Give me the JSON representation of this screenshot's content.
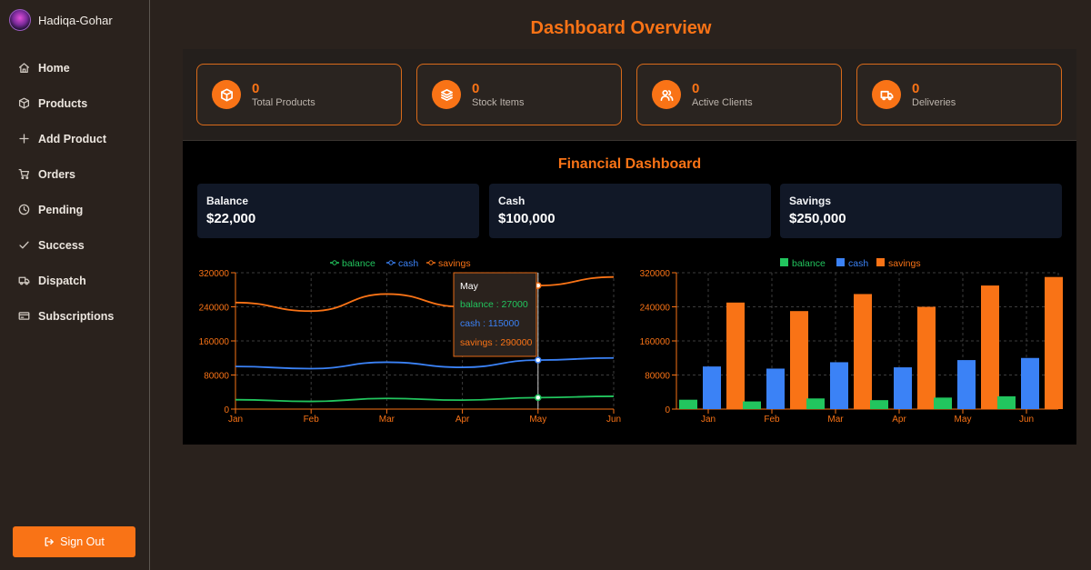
{
  "sidebar": {
    "brand_name": "Hadiqa-Gohar",
    "items": [
      {
        "label": "Home",
        "icon": "home-icon"
      },
      {
        "label": "Products",
        "icon": "box-icon"
      },
      {
        "label": "Add Product",
        "icon": "plus-icon"
      },
      {
        "label": "Orders",
        "icon": "cart-icon"
      },
      {
        "label": "Pending",
        "icon": "clock-icon"
      },
      {
        "label": "Success",
        "icon": "check-icon"
      },
      {
        "label": "Dispatch",
        "icon": "truck-icon"
      },
      {
        "label": "Subscriptions",
        "icon": "card-icon"
      }
    ],
    "signout_label": "Sign Out"
  },
  "main": {
    "title": "Dashboard Overview",
    "stats": [
      {
        "value": "0",
        "label": "Total Products",
        "icon": "box-icon"
      },
      {
        "value": "0",
        "label": "Stock Items",
        "icon": "layers-icon"
      },
      {
        "value": "0",
        "label": "Active Clients",
        "icon": "users-icon"
      },
      {
        "value": "0",
        "label": "Deliveries",
        "icon": "truck-icon"
      }
    ],
    "financial": {
      "title": "Financial Dashboard",
      "cards": [
        {
          "label": "Balance",
          "value": "$22,000"
        },
        {
          "label": "Cash",
          "value": "$100,000"
        },
        {
          "label": "Savings",
          "value": "$250,000"
        }
      ]
    }
  },
  "colors": {
    "accent": "#f97316",
    "balance": "#22c55e",
    "cash": "#3b82f6",
    "savings": "#f97316"
  },
  "chart_data": [
    {
      "type": "line",
      "categories": [
        "Jan",
        "Feb",
        "Mar",
        "Apr",
        "May",
        "Jun"
      ],
      "series": [
        {
          "name": "balance",
          "values": [
            22000,
            18000,
            25000,
            21000,
            27000,
            30000
          ]
        },
        {
          "name": "cash",
          "values": [
            100000,
            95000,
            110000,
            98000,
            115000,
            120000
          ]
        },
        {
          "name": "savings",
          "values": [
            250000,
            230000,
            270000,
            240000,
            290000,
            310000
          ]
        }
      ],
      "yticks": [
        "0",
        "80000",
        "160000",
        "240000",
        "320000"
      ],
      "ylim": [
        0,
        320000
      ],
      "legend": "top-center",
      "grid": true,
      "tooltip": {
        "title": "May",
        "lines": [
          "balance : 27000",
          "cash : 115000",
          "savings : 290000"
        ]
      }
    },
    {
      "type": "bar",
      "categories": [
        "Jan",
        "Feb",
        "Mar",
        "Apr",
        "May",
        "Jun"
      ],
      "series": [
        {
          "name": "balance",
          "values": [
            22000,
            18000,
            25000,
            21000,
            27000,
            30000
          ]
        },
        {
          "name": "cash",
          "values": [
            100000,
            95000,
            110000,
            98000,
            115000,
            120000
          ]
        },
        {
          "name": "savings",
          "values": [
            250000,
            230000,
            270000,
            240000,
            290000,
            310000
          ]
        }
      ],
      "yticks": [
        "0",
        "80000",
        "160000",
        "240000",
        "320000"
      ],
      "ylim": [
        0,
        320000
      ],
      "legend": "top-center",
      "grid": true
    }
  ]
}
